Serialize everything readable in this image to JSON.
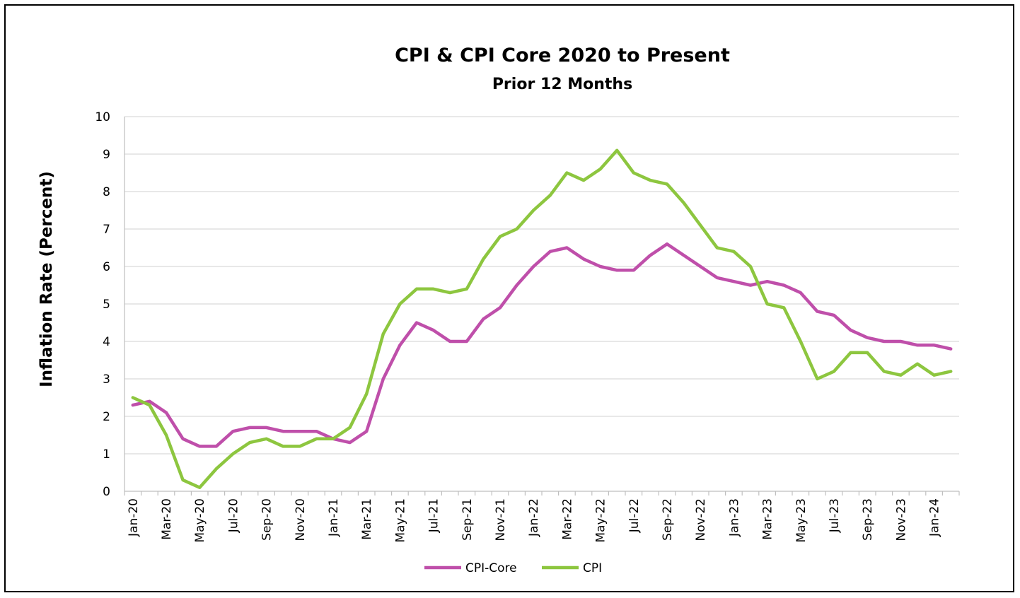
{
  "chart_data": {
    "type": "line",
    "title": "CPI & CPI Core  2020 to Present",
    "subtitle": "Prior 12 Months",
    "ylabel": "Inflation Rate (Percent)",
    "xlabel": "",
    "ylim": [
      0,
      10
    ],
    "yticks": [
      0,
      1,
      2,
      3,
      4,
      5,
      6,
      7,
      8,
      9,
      10
    ],
    "grid": true,
    "legend_position": "bottom",
    "x": [
      "Jan-20",
      "Feb-20",
      "Mar-20",
      "Apr-20",
      "May-20",
      "Jun-20",
      "Jul-20",
      "Aug-20",
      "Sep-20",
      "Oct-20",
      "Nov-20",
      "Dec-20",
      "Jan-21",
      "Feb-21",
      "Mar-21",
      "Apr-21",
      "May-21",
      "Jun-21",
      "Jul-21",
      "Aug-21",
      "Sep-21",
      "Oct-21",
      "Nov-21",
      "Dec-21",
      "Jan-22",
      "Feb-22",
      "Mar-22",
      "Apr-22",
      "May-22",
      "Jun-22",
      "Jul-22",
      "Aug-22",
      "Sep-22",
      "Oct-22",
      "Nov-22",
      "Dec-22",
      "Jan-23",
      "Feb-23",
      "Mar-23",
      "Apr-23",
      "May-23",
      "Jun-23",
      "Jul-23",
      "Aug-23",
      "Sep-23",
      "Oct-23",
      "Nov-23",
      "Dec-23",
      "Jan-24",
      "Feb-24"
    ],
    "xtick_labels": [
      "Jan-20",
      "Mar-20",
      "May-20",
      "Jul-20",
      "Sep-20",
      "Nov-20",
      "Jan-21",
      "Mar-21",
      "May-21",
      "Jul-21",
      "Sep-21",
      "Nov-21",
      "Jan-22",
      "Mar-22",
      "May-22",
      "Jul-22",
      "Sep-22",
      "Nov-22",
      "Jan-23",
      "Mar-23",
      "May-23",
      "Jul-23",
      "Sep-23",
      "Nov-23",
      "Jan-24"
    ],
    "series": [
      {
        "name": "CPI-Core",
        "color": "#BF4FAA",
        "values": [
          2.3,
          2.4,
          2.1,
          1.4,
          1.2,
          1.2,
          1.6,
          1.7,
          1.7,
          1.6,
          1.6,
          1.6,
          1.4,
          1.3,
          1.6,
          3.0,
          3.9,
          4.5,
          4.3,
          4.0,
          4.0,
          4.6,
          4.9,
          5.5,
          6.0,
          6.4,
          6.5,
          6.2,
          6.0,
          5.9,
          5.9,
          6.3,
          6.6,
          6.3,
          6.0,
          5.7,
          5.6,
          5.5,
          5.6,
          5.5,
          5.3,
          4.8,
          4.7,
          4.3,
          4.1,
          4.0,
          4.0,
          3.9,
          3.9,
          3.8
        ]
      },
      {
        "name": "CPI",
        "color": "#8DC63F",
        "values": [
          2.5,
          2.3,
          1.5,
          0.3,
          0.1,
          0.6,
          1.0,
          1.3,
          1.4,
          1.2,
          1.2,
          1.4,
          1.4,
          1.7,
          2.6,
          4.2,
          5.0,
          5.4,
          5.4,
          5.3,
          5.4,
          6.2,
          6.8,
          7.0,
          7.5,
          7.9,
          8.5,
          8.3,
          8.6,
          9.1,
          8.5,
          8.3,
          8.2,
          7.7,
          7.1,
          6.5,
          6.4,
          6.0,
          5.0,
          4.9,
          4.0,
          3.0,
          3.2,
          3.7,
          3.7,
          3.2,
          3.1,
          3.4,
          3.1,
          3.2
        ]
      }
    ]
  }
}
